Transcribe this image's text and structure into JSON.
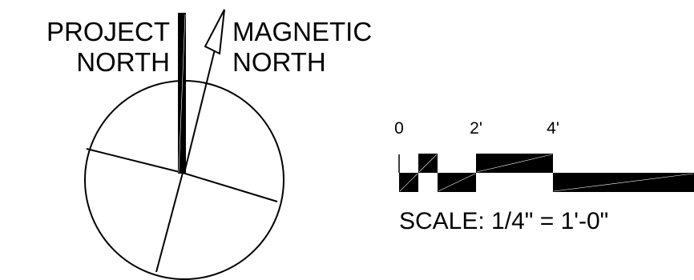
{
  "north_arrow": {
    "project_north_line1": "PROJECT",
    "project_north_line2": "NORTH",
    "magnetic_north_line1": "MAGNETIC",
    "magnetic_north_line2": "NORTH"
  },
  "scale_bar": {
    "tick_label_0": "0",
    "tick_label_2": "2'",
    "tick_label_4": "4'",
    "scale_text": "SCALE: 1/4\" = 1'-0\""
  },
  "colors": {
    "ink": "#000000",
    "background": "#ffffff"
  }
}
